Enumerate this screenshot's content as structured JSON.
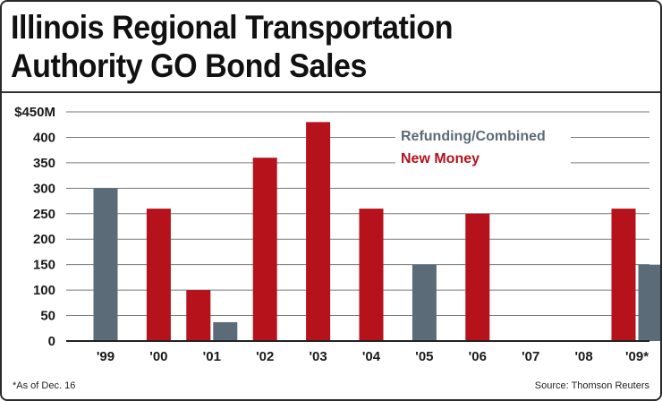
{
  "colors": {
    "refunding": "#5b6b77",
    "new_money": "#b5121b",
    "grid": "#7a7a7a",
    "text": "#1a1a1a"
  },
  "chart_data": {
    "type": "bar",
    "title": "Illinois Regional Transportation Authority GO Bond Sales",
    "title_lines": [
      "Illinois Regional Transportation",
      "Authority GO Bond Sales"
    ],
    "categories": [
      "'99",
      "'00",
      "'01",
      "'02",
      "'03",
      "'04",
      "'05",
      "'06",
      "'07",
      "'08",
      "'09*"
    ],
    "series": [
      {
        "name": "New Money",
        "color": "#b5121b",
        "values": [
          0,
          260,
          100,
          360,
          430,
          260,
          0,
          250,
          0,
          0,
          260
        ]
      },
      {
        "name": "Refunding/Combined",
        "color": "#5b6b77",
        "values": [
          300,
          0,
          37,
          0,
          0,
          0,
          150,
          0,
          0,
          0,
          150
        ]
      }
    ],
    "legend_order": [
      "Refunding/Combined",
      "New Money"
    ],
    "legend_position": "top-right",
    "yticks": [
      0,
      50,
      100,
      150,
      200,
      250,
      300,
      350,
      400,
      450
    ],
    "ytick_labels": [
      "0",
      "50",
      "100",
      "150",
      "200",
      "250",
      "300",
      "350",
      "400",
      "$450M"
    ],
    "ylim": [
      0,
      450
    ],
    "xlabel": "",
    "ylabel": "",
    "grid": true,
    "footnote": "*As of Dec. 16",
    "source": "Source: Thomson Reuters"
  }
}
